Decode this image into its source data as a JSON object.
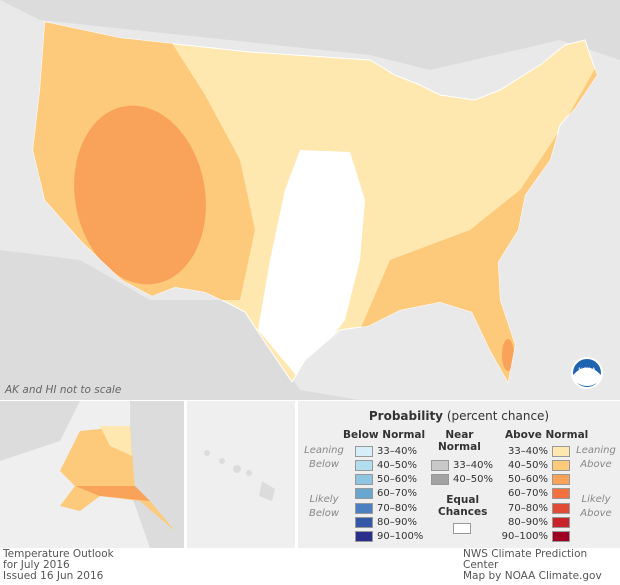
{
  "map": {
    "note": "AK and HI not to scale",
    "logo": "NOAA"
  },
  "legend": {
    "title_bold": "Probability",
    "title_rest": " (percent chance)",
    "below": {
      "header": "Below Normal",
      "leaning": "Leaning Below",
      "likely": "Likely Below",
      "items": [
        {
          "label": "33–40%",
          "color": "#d6eef7"
        },
        {
          "label": "40–50%",
          "color": "#b2dded"
        },
        {
          "label": "50–60%",
          "color": "#8ec6e2"
        },
        {
          "label": "60–70%",
          "color": "#68a6d0"
        },
        {
          "label": "70–80%",
          "color": "#4a7fc0"
        },
        {
          "label": "80–90%",
          "color": "#3557a8"
        },
        {
          "label": "90–100%",
          "color": "#2b2f8c"
        }
      ]
    },
    "near": {
      "header1": "Near",
      "header2": "Normal",
      "items": [
        {
          "label": "33–40%",
          "color": "#c8c8c8"
        },
        {
          "label": "40–50%",
          "color": "#a3a3a3"
        }
      ]
    },
    "equal": {
      "header1": "Equal",
      "header2": "Chances",
      "color": "#ffffff"
    },
    "above": {
      "header": "Above Normal",
      "leaning": "Leaning Above",
      "likely": "Likely Above",
      "items": [
        {
          "label": "33–40%",
          "color": "#fee8b0"
        },
        {
          "label": "40–50%",
          "color": "#fdc97a"
        },
        {
          "label": "50–60%",
          "color": "#f9a25a"
        },
        {
          "label": "60–70%",
          "color": "#f2703f"
        },
        {
          "label": "70–80%",
          "color": "#e14a35"
        },
        {
          "label": "80–90%",
          "color": "#c8232a"
        },
        {
          "label": "90–100%",
          "color": "#9e0024"
        }
      ]
    }
  },
  "footer": {
    "left1": "Temperature Outlook",
    "left2": "for July 2016",
    "left3": "Issued 16 Jun 2016",
    "right1": "NWS Climate Prediction Center",
    "right2": "Map by NOAA Climate.gov"
  }
}
